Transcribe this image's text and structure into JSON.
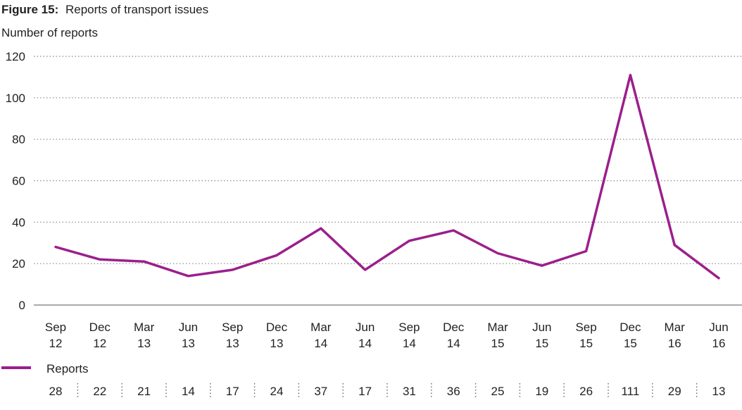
{
  "chart_data": {
    "type": "line",
    "title_prefix": "Figure 15:",
    "title": "Reports of transport issues",
    "ylabel": "Number of reports",
    "xlabel": "",
    "ylim": [
      0,
      120
    ],
    "yticks": [
      0,
      20,
      40,
      60,
      80,
      100,
      120
    ],
    "grid": "horizontal-dotted",
    "legend_position": "bottom-left",
    "categories": [
      [
        "Sep",
        "12"
      ],
      [
        "Dec",
        "12"
      ],
      [
        "Mar",
        "13"
      ],
      [
        "Jun",
        "13"
      ],
      [
        "Sep",
        "13"
      ],
      [
        "Dec",
        "13"
      ],
      [
        "Mar",
        "14"
      ],
      [
        "Jun",
        "14"
      ],
      [
        "Sep",
        "14"
      ],
      [
        "Dec",
        "14"
      ],
      [
        "Mar",
        "15"
      ],
      [
        "Jun",
        "15"
      ],
      [
        "Sep",
        "15"
      ],
      [
        "Dec",
        "15"
      ],
      [
        "Mar",
        "16"
      ],
      [
        "Jun",
        "16"
      ]
    ],
    "series": [
      {
        "name": "Reports",
        "color": "#9b1f8c",
        "values": [
          28,
          22,
          21,
          14,
          17,
          24,
          37,
          17,
          31,
          36,
          25,
          19,
          26,
          111,
          29,
          13
        ]
      }
    ]
  }
}
